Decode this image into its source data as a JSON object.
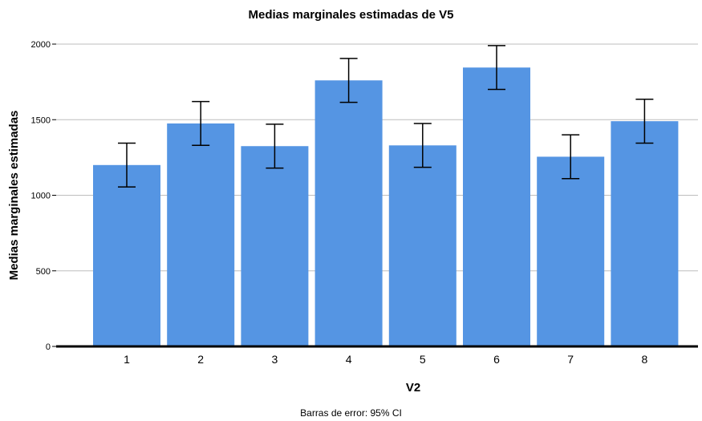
{
  "chart_data": {
    "type": "bar",
    "title": "Medias marginales estimadas de V5",
    "xlabel": "V2",
    "ylabel": "Medias marginales estimadas",
    "categories": [
      "1",
      "2",
      "3",
      "4",
      "5",
      "6",
      "7",
      "8"
    ],
    "values": [
      1200,
      1475,
      1325,
      1760,
      1330,
      1845,
      1255,
      1490
    ],
    "error_low": [
      1055,
      1330,
      1180,
      1615,
      1185,
      1700,
      1110,
      1345
    ],
    "error_high": [
      1345,
      1620,
      1470,
      1905,
      1475,
      1990,
      1400,
      1635
    ],
    "ylim": [
      0,
      2000
    ],
    "yticks": [
      0,
      500,
      1000,
      1500,
      2000
    ],
    "grid": true,
    "bar_color": "#5595e3",
    "grid_color": "#bdbdbd",
    "footnote": "Barras de error: 95% CI"
  }
}
